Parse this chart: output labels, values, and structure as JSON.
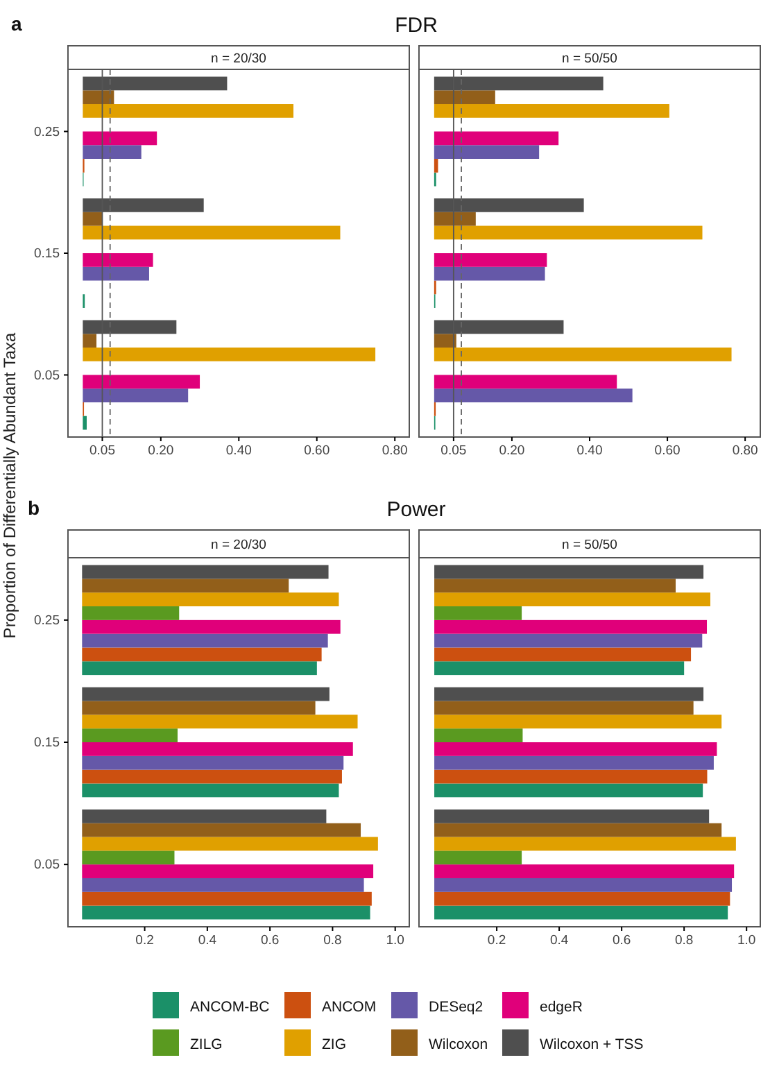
{
  "chart_data": [
    {
      "type": "bar",
      "orientation": "horizontal",
      "title": "FDR",
      "subtitle": "n = 20/30",
      "annotations": [
        "a"
      ],
      "ylabel": "Proportion of Differentially Abundant Taxa",
      "categories": [
        "0.25",
        "0.15",
        "0.05"
      ],
      "xlim": [
        -0.038,
        0.837
      ],
      "xticks": [
        0.05,
        {
          "value": 0.2,
          "label": "0.20"
        },
        {
          "value": 0.4,
          "label": "0.40"
        },
        {
          "value": 0.6,
          "label": "0.60"
        },
        {
          "value": 0.8,
          "label": "0.80"
        }
      ],
      "ref_lines": [
        {
          "axis": "x",
          "value": 0.05,
          "line_style": "solid",
          "color": "#555555"
        },
        {
          "axis": "x",
          "value": 0.07,
          "line_style": "dashed",
          "color": "#666666"
        }
      ],
      "series": [
        {
          "color": "#1b9068",
          "values": [
            0.002,
            0.005,
            0.01
          ]
        },
        {
          "color": "#cc5010",
          "values": [
            0.004,
            0,
            0.003
          ]
        },
        {
          "color": "#6558a8",
          "values": [
            0.15,
            0.17,
            0.27
          ]
        },
        {
          "color": "#e0007a",
          "values": [
            0.19,
            0.18,
            0.3
          ]
        },
        {
          "color": "#5a9a20",
          "values": [
            0,
            0,
            0
          ]
        },
        {
          "color": "#e0a000",
          "values": [
            0.54,
            0.66,
            0.75
          ]
        },
        {
          "color": "#925f1a",
          "values": [
            0.08,
            0.05,
            0.035
          ]
        },
        {
          "color": "#4f4f4f",
          "values": [
            0.37,
            0.31,
            0.24
          ]
        }
      ]
    },
    {
      "type": "bar",
      "orientation": "horizontal",
      "subtitle": "n = 50/50",
      "tick_labels": "x",
      "categories": [
        "0.25",
        "0.15",
        "0.05"
      ],
      "xlim": [
        -0.039,
        0.839
      ],
      "xticks": [
        0.05,
        {
          "value": 0.2,
          "label": "0.20"
        },
        {
          "value": 0.4,
          "label": "0.40"
        },
        {
          "value": 0.6,
          "label": "0.60"
        },
        {
          "value": 0.8,
          "label": "0.80"
        }
      ],
      "ref_lines": [
        {
          "axis": "x",
          "value": 0.05,
          "line_style": "solid",
          "color": "#555555"
        },
        {
          "axis": "x",
          "value": 0.07,
          "line_style": "dashed",
          "color": "#666666"
        }
      ],
      "series": [
        {
          "color": "#1b9068",
          "values": [
            0.005,
            0.003,
            0.003
          ]
        },
        {
          "color": "#cc5010",
          "values": [
            0.01,
            0.005,
            0.004
          ]
        },
        {
          "color": "#6558a8",
          "values": [
            0.27,
            0.285,
            0.51
          ]
        },
        {
          "color": "#e0007a",
          "values": [
            0.32,
            0.29,
            0.47
          ]
        },
        {
          "color": "#5a9a20",
          "values": [
            0,
            0,
            0
          ]
        },
        {
          "color": "#e0a000",
          "values": [
            0.605,
            0.69,
            0.765
          ]
        },
        {
          "color": "#925f1a",
          "values": [
            0.157,
            0.107,
            0.057
          ]
        },
        {
          "color": "#4f4f4f",
          "values": [
            0.435,
            0.385,
            0.333
          ]
        }
      ]
    },
    {
      "type": "bar",
      "orientation": "horizontal",
      "title": "Power",
      "subtitle": "n = 20/30",
      "annotations": [
        "b"
      ],
      "categories": [
        "0.25",
        "0.15",
        "0.05"
      ],
      "xlim": [
        -0.045,
        1.045
      ],
      "xticks": [
        0.2,
        0.4,
        0.6,
        0.8,
        {
          "value": 1,
          "label": "1.0"
        }
      ],
      "series": [
        {
          "color": "#1b9068",
          "values": [
            0.75,
            0.82,
            0.92
          ]
        },
        {
          "color": "#cc5010",
          "values": [
            0.765,
            0.83,
            0.925
          ]
        },
        {
          "color": "#6558a8",
          "values": [
            0.785,
            0.835,
            0.9
          ]
        },
        {
          "color": "#e0007a",
          "values": [
            0.825,
            0.865,
            0.93
          ]
        },
        {
          "color": "#5a9a20",
          "values": [
            0.31,
            0.305,
            0.295
          ]
        },
        {
          "color": "#e0a000",
          "values": [
            0.82,
            0.88,
            0.945
          ]
        },
        {
          "color": "#925f1a",
          "values": [
            0.66,
            0.745,
            0.89
          ]
        },
        {
          "color": "#4f4f4f",
          "values": [
            0.787,
            0.79,
            0.78
          ]
        }
      ]
    },
    {
      "type": "bar",
      "orientation": "horizontal",
      "subtitle": "n = 50/50",
      "tick_labels": "x",
      "legend": "bottom",
      "categories": [
        "0.25",
        "0.15",
        "0.05"
      ],
      "xlim": [
        -0.049,
        1.044
      ],
      "xticks": [
        0.2,
        0.4,
        0.6,
        0.8,
        {
          "value": 1,
          "label": "1.0"
        }
      ],
      "series": [
        {
          "name": "ANCOM-BC",
          "color": "#1b9068",
          "values": [
            0.8,
            0.86,
            0.94
          ]
        },
        {
          "name": "ANCOM",
          "color": "#cc5010",
          "values": [
            0.822,
            0.874,
            0.947
          ]
        },
        {
          "name": "DESeq2",
          "color": "#6558a8",
          "values": [
            0.858,
            0.895,
            0.953
          ]
        },
        {
          "name": "edgeR",
          "color": "#e0007a",
          "values": [
            0.873,
            0.905,
            0.96
          ]
        },
        {
          "name": "ZILG",
          "color": "#5a9a20",
          "values": [
            0.28,
            0.283,
            0.28
          ]
        },
        {
          "name": "ZIG",
          "color": "#e0a000",
          "values": [
            0.884,
            0.92,
            0.966
          ]
        },
        {
          "name": "Wilcoxon",
          "color": "#925f1a",
          "values": [
            0.773,
            0.83,
            0.92
          ]
        },
        {
          "name": "Wilcoxon + TSS",
          "color": "#4f4f4f",
          "values": [
            0.862,
            0.862,
            0.88
          ]
        }
      ]
    }
  ]
}
